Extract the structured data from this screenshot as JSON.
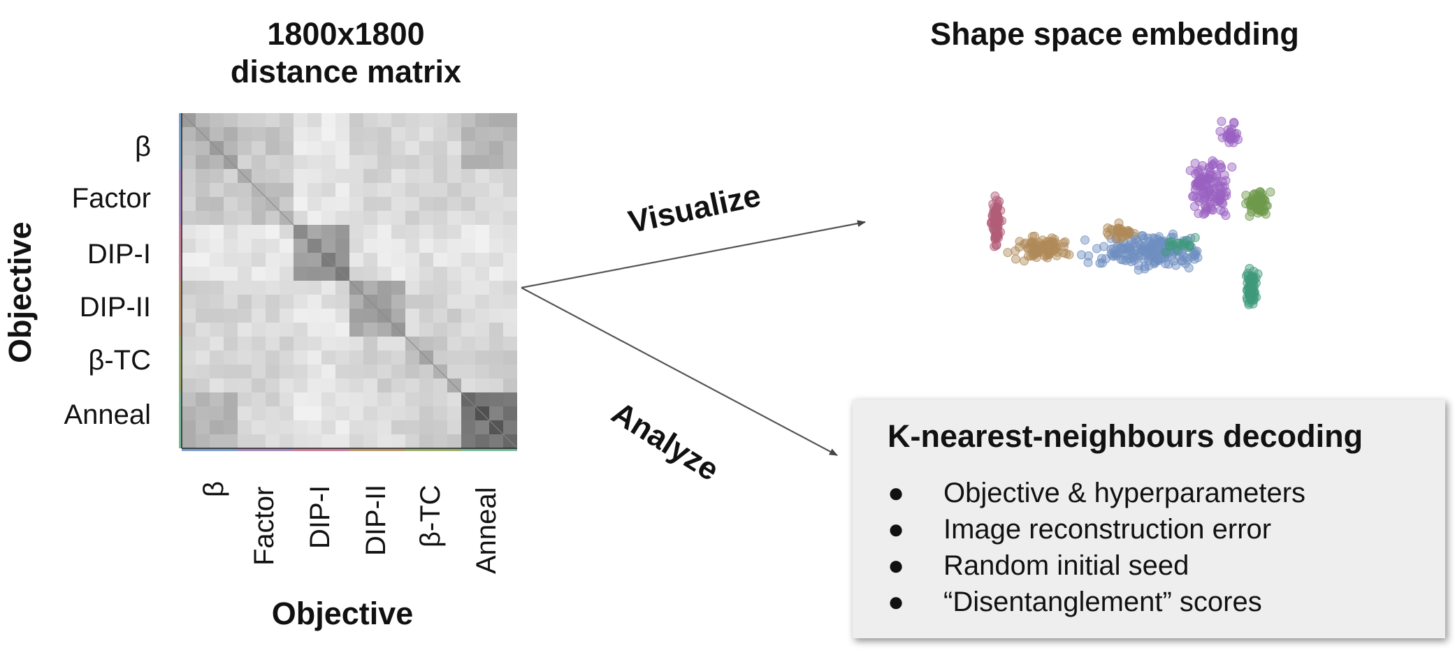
{
  "matrix_title": {
    "line1": "1800x1800",
    "line2": "distance matrix"
  },
  "embedding_title": "Shape space embedding",
  "y_axis_title": "Objective",
  "x_axis_title": "Objective",
  "groups": [
    {
      "label": "β",
      "color": "#7b9ec9"
    },
    {
      "label": "Factor",
      "color": "#a686bd"
    },
    {
      "label": "DIP-I",
      "color": "#c97f9c"
    },
    {
      "label": "DIP-II",
      "color": "#b89670"
    },
    {
      "label": "β-TC",
      "color": "#98ae6e"
    },
    {
      "label": "Anneal",
      "color": "#79b89c"
    }
  ],
  "arrows": {
    "visualize": "Visualize",
    "analyze": "Analyze"
  },
  "knn": {
    "title": "K-nearest-neighbours decoding",
    "bullet": "●",
    "items": [
      "Objective & hyperparameters",
      "Image reconstruction error",
      "Random initial seed",
      "“Disentanglement” scores"
    ]
  },
  "embedding_colors": {
    "beta": "#6e8fc0",
    "factor": "#9a62c2",
    "dip1": "#b25d78",
    "dip2": "#b08a58",
    "btc": "#6e9a4c",
    "anneal": "#3f9a7a"
  }
}
